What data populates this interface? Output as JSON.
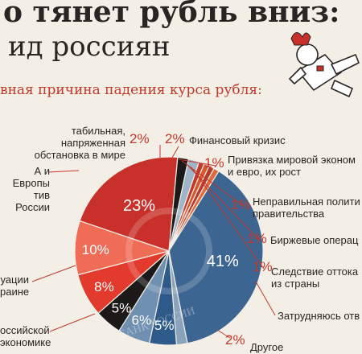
{
  "header": {
    "title_line1": "о тянет рубль вниз:",
    "title_line2": "ид россиян",
    "subtitle": "вная причина падения курса рубля:"
  },
  "chart_data": {
    "type": "pie",
    "slices": [
      {
        "value": 2,
        "label": "Финансовый кризис",
        "display": "2%",
        "color": "#9eb4c8"
      },
      {
        "value": 1,
        "label": "Привязка мировой эконом\nи евро, их рост",
        "display": "1%",
        "color": "#c1392b"
      },
      {
        "value": 1,
        "label": "Неправильная полити\nправительства",
        "display": "1%",
        "color": "#d8562e"
      },
      {
        "value": 1,
        "label": "Биржевые операц",
        "display": "1%",
        "color": "#b83a2f"
      },
      {
        "value": 1,
        "label": "Следствие оттока\nиз страны",
        "display": "1%",
        "color": "#e06a3f"
      },
      {
        "value": 41,
        "label": "Затрудняюсь отв",
        "display": "41%",
        "color": "#3d6591"
      },
      {
        "value": 2,
        "label": "Другое",
        "display": "2%",
        "color": "#8aa3bc"
      },
      {
        "value": 5,
        "label": "",
        "display": "5%",
        "color": "#2e5a8a"
      },
      {
        "value": 6,
        "label": "",
        "display": "6%",
        "color": "#6f90b1"
      },
      {
        "value": 5,
        "label": "оссийской\nэкономике",
        "display": "5%",
        "color": "#1c1a19"
      },
      {
        "value": 8,
        "label": "",
        "display": "8%",
        "color": "#e23a2c"
      },
      {
        "value": 10,
        "label": "уации\nраине",
        "display": "10%",
        "color": "#ef6d57"
      },
      {
        "value": 23,
        "label": "А и Европы\nтив России",
        "display": "23%",
        "color": "#c8312a"
      },
      {
        "value": 2,
        "label": "Нестабильная, напряженная\nобстановка в мире",
        "display": "2%",
        "color": "#1c1a19"
      }
    ]
  },
  "labels": {
    "unstable": "табильная, напряженная\nобстановка в мире",
    "unstable_pct": "2%",
    "crisis": "Финансовый кризис",
    "crisis_pct": "2%",
    "link": "Привязка мировой эконом\nи евро, их рост",
    "link_pct": "1%",
    "policy": "Неправильная полити\nправительства",
    "policy_pct": "1%",
    "exchange": "Биржевые операц",
    "exchange_pct": "1%",
    "outflow": "Следствие оттока\nиз страны",
    "outflow_pct": "1%",
    "unsure": "Затрудняюсь отв",
    "other": "Другое",
    "other_pct": "2%",
    "usa": "А и Европы\nтив России",
    "ukraine": "уации\nраине",
    "economy": "оссийской\nэкономике"
  },
  "watermark": "БАНК РОССИИ",
  "colors": {
    "background": "#f3efe6",
    "accent": "#c1392b",
    "leader": "#c1392b"
  }
}
